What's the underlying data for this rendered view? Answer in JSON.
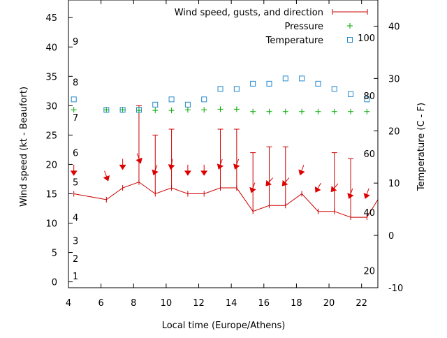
{
  "chart_data": {
    "type": "line",
    "xlabel": "Local time (Europe/Athens)",
    "ylabel_left": "Wind speed (kt - Beaufort)",
    "ylabel_right": "Temperature (C - F)",
    "xlim": [
      4,
      23
    ],
    "ylim_left": [
      -1,
      48
    ],
    "ylim_right": [
      -10,
      45
    ],
    "x_ticks": [
      4,
      6,
      8,
      10,
      12,
      14,
      16,
      18,
      20,
      22
    ],
    "y_ticks_left": [
      0,
      5,
      10,
      15,
      20,
      25,
      30,
      35,
      40,
      45
    ],
    "y_ticks_right": [
      -10,
      0,
      10,
      20,
      30,
      40
    ],
    "beaufort_labels": [
      {
        "text": "1",
        "y": 1
      },
      {
        "text": "2",
        "y": 4
      },
      {
        "text": "3",
        "y": 7
      },
      {
        "text": "4",
        "y": 11
      },
      {
        "text": "5",
        "y": 17
      },
      {
        "text": "6",
        "y": 22
      },
      {
        "text": "7",
        "y": 28
      },
      {
        "text": "8",
        "y": 34
      },
      {
        "text": "9",
        "y": 41
      }
    ],
    "fahrenheit_labels": [
      {
        "text": "20",
        "y": -6.7
      },
      {
        "text": "40",
        "y": 4.4
      },
      {
        "text": "60",
        "y": 15.6
      },
      {
        "text": "80",
        "y": 26.7
      },
      {
        "text": "100",
        "y": 37.8
      }
    ],
    "series": [
      {
        "name": "Wind speed, gusts, and direction",
        "color": "#cc0000",
        "x": [
          4.33,
          6.33,
          7.33,
          8.33,
          9.33,
          10.33,
          11.33,
          12.33,
          13.33,
          14.33,
          15.33,
          16.33,
          17.33,
          18.33,
          19.33,
          20.33,
          21.33,
          22.33,
          23
        ],
        "speed": [
          15,
          14,
          16,
          17,
          15,
          16,
          15,
          15,
          16,
          16,
          12,
          13,
          13,
          15,
          12,
          12,
          11,
          11,
          14
        ],
        "gust": [
          null,
          null,
          null,
          30,
          25,
          26,
          null,
          null,
          26,
          26,
          22,
          23,
          23,
          null,
          null,
          22,
          21,
          null,
          null
        ],
        "direction_deg": [
          180,
          160,
          180,
          160,
          200,
          190,
          180,
          180,
          200,
          200,
          200,
          220,
          220,
          200,
          210,
          220,
          200,
          200,
          null
        ]
      },
      {
        "name": "Pressure",
        "color": "#00aa00",
        "x": [
          4.33,
          6.33,
          7.33,
          8.33,
          9.33,
          10.33,
          11.33,
          12.33,
          13.33,
          14.33,
          15.33,
          16.33,
          17.33,
          18.33,
          19.33,
          20.33,
          21.33,
          22.33
        ],
        "values": [
          29.3,
          29.3,
          29.3,
          29.2,
          29.2,
          29.2,
          29.3,
          29.3,
          29.4,
          29.4,
          29.0,
          29.0,
          29.0,
          29.0,
          29.0,
          29.0,
          29.0,
          29.0
        ]
      },
      {
        "name": "Temperature",
        "color": "#2288cc",
        "x": [
          4.33,
          6.33,
          7.33,
          8.33,
          9.33,
          10.33,
          11.33,
          12.33,
          13.33,
          14.33,
          15.33,
          16.33,
          17.33,
          18.33,
          19.33,
          20.33,
          21.33,
          22.33
        ],
        "values": [
          26,
          24,
          24,
          24,
          25,
          26,
          25,
          26,
          28,
          28,
          29,
          29,
          30,
          30,
          29,
          28,
          27,
          26
        ]
      }
    ],
    "legend_position": "top-right",
    "grid": false
  }
}
